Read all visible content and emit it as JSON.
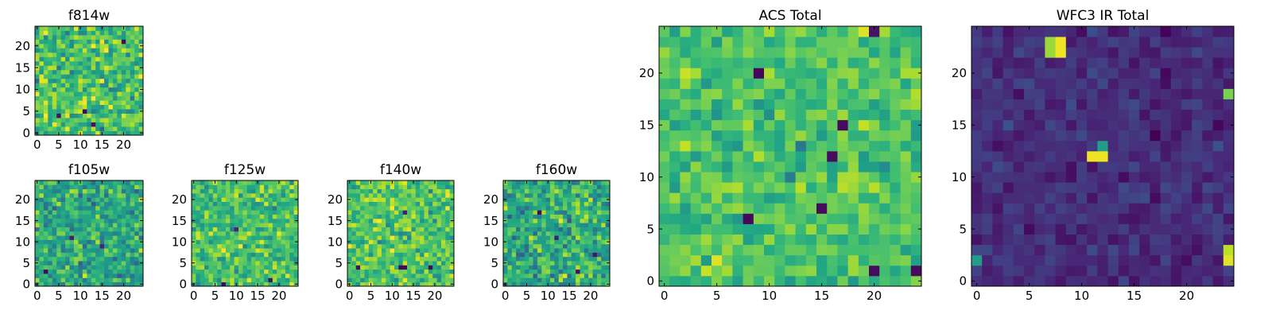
{
  "figure": {
    "background": "#ffffff"
  },
  "chart_data": [
    {
      "type": "heatmap",
      "key": "f814w",
      "title": "f814w",
      "grid_size": 25,
      "xlim": [
        0,
        24
      ],
      "ylim": [
        0,
        24
      ],
      "xticks": [
        0,
        5,
        10,
        15,
        20
      ],
      "yticks": [
        0,
        5,
        10,
        15,
        20
      ],
      "colormap": "viridis",
      "value_range": [
        0,
        1
      ],
      "value_mean": 0.7,
      "value_spread": 0.24,
      "seed": 11,
      "hotspots": [
        {
          "x": 11,
          "y": 5,
          "value": 0.02
        },
        {
          "x": 5,
          "y": 4,
          "value": 0.05
        },
        {
          "x": 13,
          "y": 2,
          "value": 0.04
        },
        {
          "x": 20,
          "y": 21,
          "value": 0.03
        }
      ]
    },
    {
      "type": "heatmap",
      "key": "f105w",
      "title": "f105w",
      "grid_size": 25,
      "xlim": [
        0,
        24
      ],
      "ylim": [
        0,
        24
      ],
      "xticks": [
        0,
        5,
        10,
        15,
        20
      ],
      "yticks": [
        0,
        5,
        10,
        15,
        20
      ],
      "colormap": "viridis",
      "value_range": [
        0,
        1
      ],
      "value_mean": 0.6,
      "value_spread": 0.22,
      "seed": 23,
      "hotspots": [
        {
          "x": 2,
          "y": 3,
          "value": 0.02
        },
        {
          "x": 8,
          "y": 11,
          "value": 0.08
        },
        {
          "x": 15,
          "y": 9,
          "value": 0.1
        }
      ]
    },
    {
      "type": "heatmap",
      "key": "f125w",
      "title": "f125w",
      "grid_size": 25,
      "xlim": [
        0,
        24
      ],
      "ylim": [
        0,
        24
      ],
      "xticks": [
        0,
        5,
        10,
        15,
        20
      ],
      "yticks": [
        0,
        5,
        10,
        15,
        20
      ],
      "colormap": "viridis",
      "value_range": [
        0,
        1
      ],
      "value_mean": 0.7,
      "value_spread": 0.2,
      "seed": 37,
      "hotspots": [
        {
          "x": 7,
          "y": 0,
          "value": 0.02
        },
        {
          "x": 18,
          "y": 1,
          "value": 0.05
        },
        {
          "x": 10,
          "y": 13,
          "value": 0.1
        }
      ]
    },
    {
      "type": "heatmap",
      "key": "f140w",
      "title": "f140w",
      "grid_size": 25,
      "xlim": [
        0,
        24
      ],
      "ylim": [
        0,
        24
      ],
      "xticks": [
        0,
        5,
        10,
        15,
        20
      ],
      "yticks": [
        0,
        5,
        10,
        15,
        20
      ],
      "colormap": "viridis",
      "value_range": [
        0,
        1
      ],
      "value_mean": 0.72,
      "value_spread": 0.2,
      "seed": 41,
      "hotspots": [
        {
          "x": 12,
          "y": 4,
          "value": 0.02
        },
        {
          "x": 13,
          "y": 4,
          "value": 0.02
        },
        {
          "x": 2,
          "y": 4,
          "value": 0.04
        },
        {
          "x": 19,
          "y": 4,
          "value": 0.03
        },
        {
          "x": 13,
          "y": 17,
          "value": 0.08
        }
      ]
    },
    {
      "type": "heatmap",
      "key": "f160w",
      "title": "f160w",
      "grid_size": 25,
      "xlim": [
        0,
        24
      ],
      "ylim": [
        0,
        24
      ],
      "xticks": [
        0,
        5,
        10,
        15,
        20
      ],
      "yticks": [
        0,
        5,
        10,
        15,
        20
      ],
      "colormap": "viridis",
      "value_range": [
        0,
        1
      ],
      "value_mean": 0.62,
      "value_spread": 0.24,
      "seed": 53,
      "hotspots": [
        {
          "x": 8,
          "y": 17,
          "value": 0.03
        },
        {
          "x": 17,
          "y": 3,
          "value": 0.04
        },
        {
          "x": 21,
          "y": 7,
          "value": 0.06
        },
        {
          "x": 12,
          "y": 11,
          "value": 0.08
        }
      ]
    },
    {
      "type": "heatmap",
      "key": "acs_total",
      "title": "ACS Total",
      "grid_size": 25,
      "xlim": [
        0,
        24
      ],
      "ylim": [
        0,
        24
      ],
      "xticks": [
        0,
        5,
        10,
        15,
        20
      ],
      "yticks": [
        0,
        5,
        10,
        15,
        20
      ],
      "colormap": "viridis",
      "value_range": [
        0,
        1
      ],
      "value_mean": 0.72,
      "value_spread": 0.15,
      "seed": 67,
      "hotspots": [
        {
          "x": 9,
          "y": 20,
          "value": 0.02
        },
        {
          "x": 17,
          "y": 15,
          "value": 0.03
        },
        {
          "x": 16,
          "y": 12,
          "value": 0.03
        },
        {
          "x": 8,
          "y": 6,
          "value": 0.02
        },
        {
          "x": 15,
          "y": 7,
          "value": 0.03
        },
        {
          "x": 20,
          "y": 1,
          "value": 0.03
        },
        {
          "x": 24,
          "y": 1,
          "value": 0.03
        },
        {
          "x": 20,
          "y": 24,
          "value": 0.05
        },
        {
          "x": 13,
          "y": 13,
          "value": 0.4
        },
        {
          "x": 12,
          "y": 10,
          "value": 0.42
        }
      ]
    },
    {
      "type": "heatmap",
      "key": "wfc3_ir_total",
      "title": "WFC3 IR Total",
      "grid_size": 25,
      "xlim": [
        0,
        24
      ],
      "ylim": [
        0,
        24
      ],
      "xticks": [
        0,
        5,
        10,
        15,
        20
      ],
      "yticks": [
        0,
        5,
        10,
        15,
        20
      ],
      "colormap": "viridis",
      "value_range": [
        0,
        1
      ],
      "value_mean": 0.13,
      "value_spread": 0.08,
      "seed": 79,
      "hotspots": [
        {
          "x": 7,
          "y": 23,
          "value": 0.85
        },
        {
          "x": 8,
          "y": 23,
          "value": 0.98
        },
        {
          "x": 8,
          "y": 22,
          "value": 0.98
        },
        {
          "x": 7,
          "y": 22,
          "value": 0.85
        },
        {
          "x": 11,
          "y": 12,
          "value": 0.98
        },
        {
          "x": 12,
          "y": 12,
          "value": 0.98
        },
        {
          "x": 12,
          "y": 13,
          "value": 0.55
        },
        {
          "x": 24,
          "y": 18,
          "value": 0.8
        },
        {
          "x": 24,
          "y": 3,
          "value": 0.9
        },
        {
          "x": 24,
          "y": 2,
          "value": 0.95
        },
        {
          "x": 0,
          "y": 2,
          "value": 0.55
        },
        {
          "x": 17,
          "y": 14,
          "value": 0.0
        }
      ]
    }
  ]
}
